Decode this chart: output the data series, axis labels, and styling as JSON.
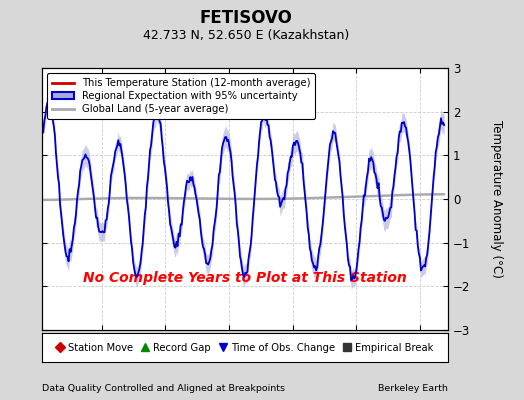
{
  "title": "FETISOVO",
  "subtitle": "42.733 N, 52.650 E (Kazakhstan)",
  "ylabel": "Temperature Anomaly (°C)",
  "xlabel_bottom": "Data Quality Controlled and Aligned at Breakpoints",
  "xlabel_right": "Berkeley Earth",
  "annotation": "No Complete Years to Plot at This Station",
  "ylim": [
    -3,
    3
  ],
  "xlim": [
    1945.3,
    1977.2
  ],
  "xticks": [
    1950,
    1955,
    1960,
    1965,
    1970,
    1975
  ],
  "yticks": [
    -3,
    -2,
    -1,
    0,
    1,
    2,
    3
  ],
  "fig_bg_color": "#d8d8d8",
  "plot_bg_color": "#ffffff",
  "regional_line_color": "#0000cc",
  "regional_fill_color": "#aaaadd",
  "station_line_color": "#cc0000",
  "global_land_color": "#aaaaaa",
  "annotation_color": "#ff0000",
  "grid_color": "#cccccc",
  "legend_labels": [
    "This Temperature Station (12-month average)",
    "Regional Expectation with 95% uncertainty",
    "Global Land (5-year average)"
  ],
  "bottom_legend": [
    {
      "label": "Station Move",
      "color": "#cc0000",
      "marker": "D"
    },
    {
      "label": "Record Gap",
      "color": "#008800",
      "marker": "^"
    },
    {
      "label": "Time of Obs. Change",
      "color": "#0000cc",
      "marker": "v"
    },
    {
      "label": "Empirical Break",
      "color": "#333333",
      "marker": "s"
    }
  ]
}
